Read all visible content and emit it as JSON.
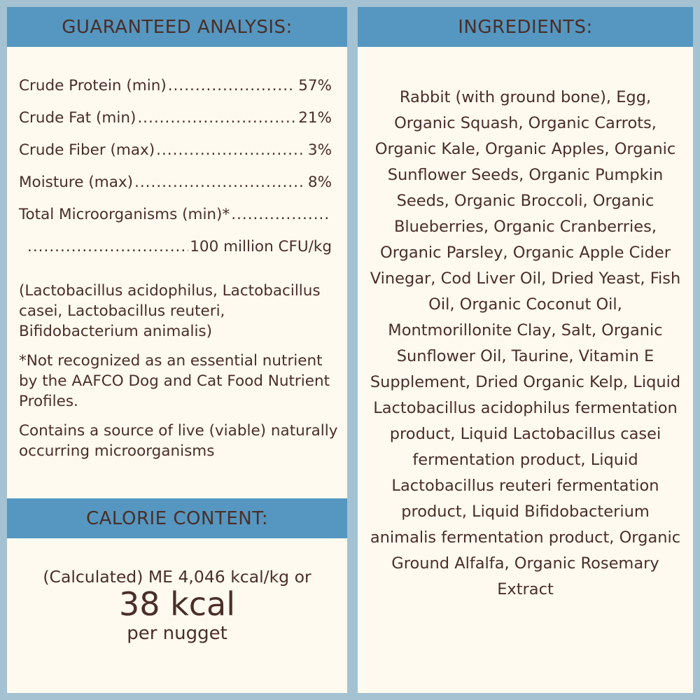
{
  "guaranteed_analysis": {
    "title": "GUARANTEED ANALYSIS:",
    "rows": [
      {
        "label": "Crude Protein (min)",
        "value": "57%"
      },
      {
        "label": "Crude Fat (min)",
        "value": "21%"
      },
      {
        "label": "Crude Fiber (max)",
        "value": "3%"
      },
      {
        "label": "Moisture (max)",
        "value": "8%"
      },
      {
        "label": "Total Microorganisms (min)*",
        "value": ""
      },
      {
        "label": "",
        "value": "100 million CFU/kg"
      }
    ],
    "strains": "(Lactobacillus acidophilus, Lactobacillus casei, Lactobacillus reuteri, Bifidobacterium animalis)",
    "footnote": "*Not recognized as an essential nutrient by the AAFCO Dog and Cat Food Nutrient Profiles.",
    "live_note": "Contains a source of live (viable) naturally occurring microorganisms"
  },
  "calorie_content": {
    "title": "CALORIE CONTENT:",
    "line1": "(Calculated) ME 4,046 kcal/kg or",
    "line2": "38 kcal",
    "line3": "per nugget"
  },
  "ingredients": {
    "title": "INGREDIENTS:",
    "text": "Rabbit (with ground bone), Egg, Organic Squash, Organic Carrots, Organic Kale, Organic Apples, Organic Sunflower Seeds, Organic Pumpkin Seeds, Organic Broccoli, Organic Blueberries, Organic Cranberries, Organic Parsley, Organic Apple Cider Vinegar, Cod Liver Oil, Dried Yeast, Fish Oil, Organic Coconut Oil, Montmorillonite Clay, Salt, Organic Sunflower Oil, Taurine, Vitamin E Supplement, Dried Organic Kelp, Liquid Lactobacillus acidophilus fermentation product, Liquid Lactobacillus casei fermentation product, Liquid Lactobacillus reuteri fermentation product, Liquid Bifidobacterium animalis fermentation product, Organic Ground Alfalfa, Organic Rosemary Extract"
  },
  "colors": {
    "border": "#a4c2d2",
    "header": "#5597c0",
    "panel": "#fefaf0",
    "text": "#4a2e28"
  }
}
